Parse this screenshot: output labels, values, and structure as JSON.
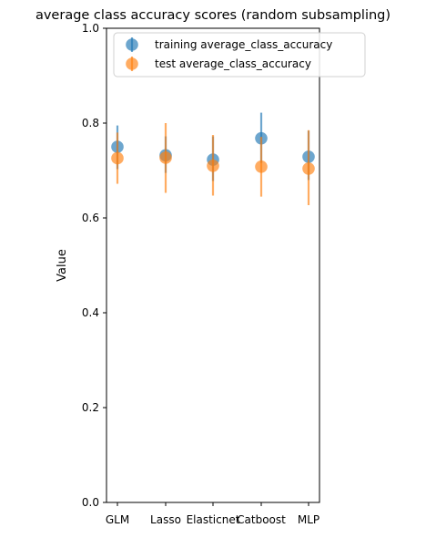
{
  "chart_data": {
    "type": "scatter",
    "title": "average class accuracy scores (random subsampling)",
    "xlabel": "",
    "ylabel": "Value",
    "categories": [
      "GLM",
      "Lasso",
      "Elasticnet",
      "Catboost",
      "MLP"
    ],
    "ylim": [
      0,
      1.0
    ],
    "yticks": [
      "0.0",
      "0.2",
      "0.4",
      "0.6",
      "0.8",
      "1.0"
    ],
    "grid": false,
    "legend_position": "top-right",
    "series": [
      {
        "name": "training average_class_accuracy",
        "color": "#1f77b4",
        "values": [
          0.75,
          0.732,
          0.723,
          0.768,
          0.729
        ],
        "err_low": [
          0.703,
          0.695,
          0.678,
          0.716,
          0.68
        ],
        "err_high": [
          0.795,
          0.772,
          0.772,
          0.822,
          0.784
        ]
      },
      {
        "name": "test average_class_accuracy",
        "color": "#ff7f0e",
        "values": [
          0.726,
          0.727,
          0.71,
          0.708,
          0.704
        ],
        "err_low": [
          0.672,
          0.653,
          0.647,
          0.645,
          0.627
        ],
        "err_high": [
          0.78,
          0.8,
          0.775,
          0.771,
          0.785
        ]
      }
    ]
  }
}
